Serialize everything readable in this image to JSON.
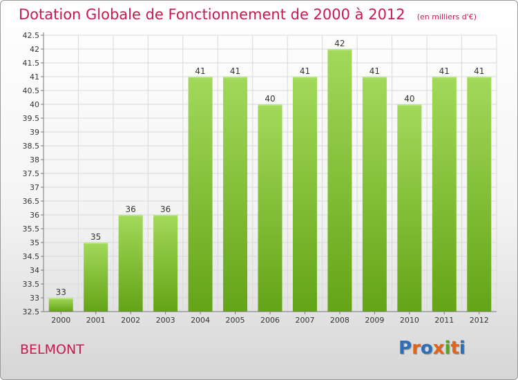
{
  "title": "Dotation Globale de Fonctionnement de 2000 à 2012",
  "unit": "(en milliers d'€)",
  "commune": "BELMONT",
  "logo": {
    "text": "Proxiti",
    "colors": [
      "#2a6fb8",
      "#e0641c",
      "#2a6fb8",
      "#e0641c",
      "#59a51b",
      "#e0641c",
      "#2a6fb8"
    ]
  },
  "colors": {
    "accent": "#c8194f",
    "bar_dark": "#64a417",
    "bar_light": "#a2d95a"
  },
  "chart_data": {
    "type": "bar",
    "categories": [
      "2000",
      "2001",
      "2002",
      "2003",
      "2004",
      "2005",
      "2006",
      "2007",
      "2008",
      "2009",
      "2010",
      "2011",
      "2012"
    ],
    "values": [
      33,
      35,
      36,
      36,
      41,
      41,
      40,
      41,
      42,
      41,
      40,
      41,
      41
    ],
    "ylim": [
      32.5,
      42.5
    ],
    "yticks": [
      "32.5",
      "33",
      "33.5",
      "34",
      "34.5",
      "35",
      "35.5",
      "36",
      "36.5",
      "37",
      "37.5",
      "38",
      "38.5",
      "39",
      "39.5",
      "40",
      "40.5",
      "41",
      "41.5",
      "42",
      "42.5"
    ],
    "grid": true
  }
}
